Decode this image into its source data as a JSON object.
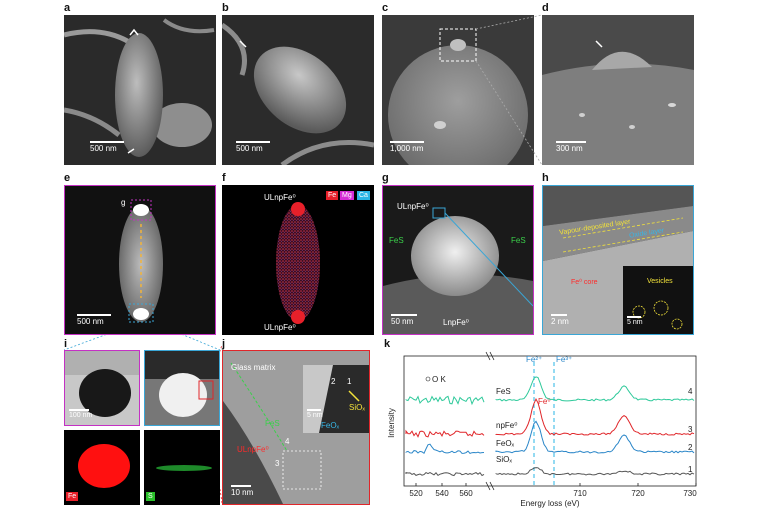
{
  "panels": {
    "a": {
      "label": "a",
      "scale": "500 nm"
    },
    "b": {
      "label": "b",
      "scale": "500 nm"
    },
    "c": {
      "label": "c",
      "scale": "1,000 nm"
    },
    "d": {
      "label": "d",
      "scale": "300 nm"
    },
    "e": {
      "label": "e",
      "scale": "500 nm",
      "marker": "g"
    },
    "f": {
      "label": "f",
      "top_label": "ULnpFe⁰",
      "bottom_label": "ULnpFe⁰",
      "legend": [
        "Fe",
        "Mg",
        "Ca"
      ],
      "legend_colors": [
        "#e8202a",
        "#d62cd6",
        "#2ab6e6"
      ]
    },
    "g": {
      "label": "g",
      "scale": "50 nm",
      "title": "ULnpFe⁰",
      "left": "FeS",
      "right": "FeS",
      "bottom": "LnpFe⁰"
    },
    "h": {
      "label": "h",
      "scale": "2 nm",
      "layer1": "Vapour-deposited layer",
      "layer2": "Oxide layer",
      "core": "Fe⁰ core",
      "vesicles": "Vesicles",
      "inset_scale": "5 nm"
    },
    "i": {
      "label": "i",
      "scale": "100 nm",
      "fe": "Fe",
      "s": "S"
    },
    "j": {
      "label": "j",
      "scale": "10 nm",
      "matrix": "Glass matrix",
      "fes": "FeS",
      "ulnp": "ULnpFe⁰",
      "n1": "1",
      "n2": "2",
      "n3": "3",
      "n4": "4",
      "sio": "SiOₓ",
      "feo": "FeOₓ",
      "inset_scale": "5 nm"
    },
    "k": {
      "label": "k"
    }
  },
  "chart_data": {
    "type": "line",
    "xlabel": "Energy loss (eV)",
    "ylabel": "Intensity",
    "x_ticks_left": [
      "520",
      "540",
      "560"
    ],
    "x_ticks_right": [
      "710",
      "720",
      "730"
    ],
    "ok_label": "O K",
    "fe2_label": "Fe²⁺",
    "fe3_label": "Fe³⁺",
    "fe0_label": "Fe⁰",
    "series": [
      {
        "name": "FeS",
        "number": "4",
        "color": "#2ec99a"
      },
      {
        "name": "npFe⁰",
        "number": "3",
        "color": "#e0262a"
      },
      {
        "name": "FeOₓ",
        "number": "2",
        "color": "#2a86c8"
      },
      {
        "name": "SiOₓ",
        "number": "1",
        "color": "#555555"
      }
    ]
  }
}
